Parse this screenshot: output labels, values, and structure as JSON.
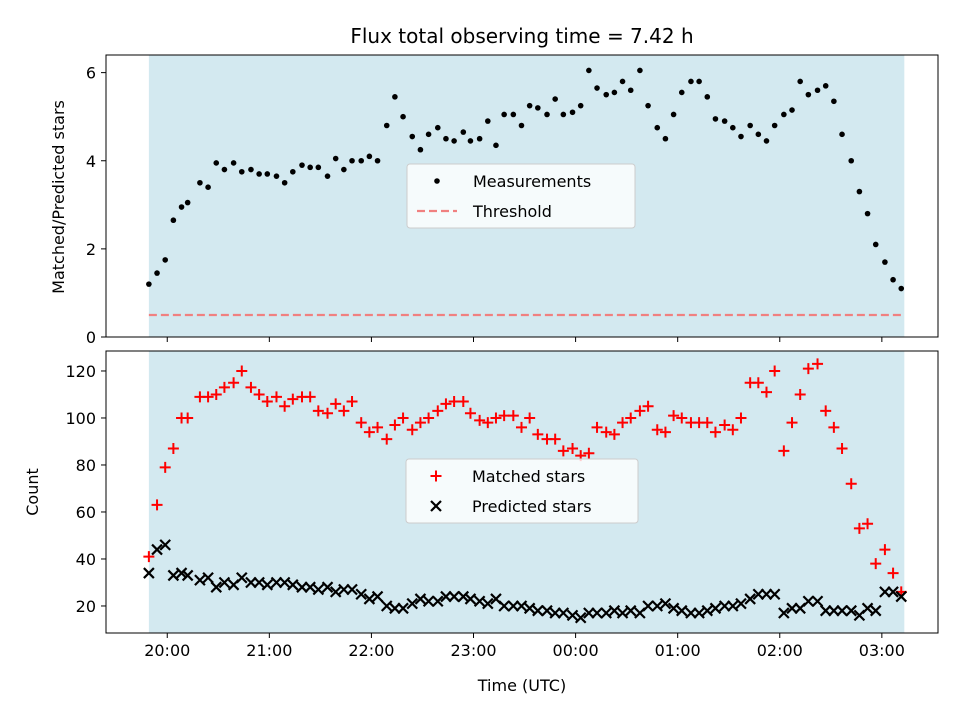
{
  "chart_data": [
    {
      "type": "scatter",
      "title": "Flux total observing time = 7.42 h",
      "xlabel": "",
      "ylabel": "Matched/Predicted stars",
      "ylim": [
        0,
        6.4
      ],
      "yticks": [
        0,
        2,
        4,
        6
      ],
      "shaded_region": {
        "x_start": 19.82,
        "x_end": 27.22,
        "color": "#d3e9f0"
      },
      "legend_position": "center",
      "series": [
        {
          "name": "Measurements",
          "marker": "dot",
          "color": "#000000",
          "x": [
            19.82,
            19.9,
            19.98,
            20.06,
            20.14,
            20.2,
            20.32,
            20.4,
            20.48,
            20.56,
            20.65,
            20.73,
            20.82,
            20.9,
            20.98,
            21.07,
            21.15,
            21.23,
            21.32,
            21.4,
            21.48,
            21.57,
            21.65,
            21.73,
            21.81,
            21.9,
            21.98,
            22.06,
            22.15,
            22.23,
            22.31,
            22.4,
            22.48,
            22.56,
            22.65,
            22.73,
            22.81,
            22.9,
            22.97,
            23.06,
            23.14,
            23.22,
            23.3,
            23.39,
            23.47,
            23.55,
            23.63,
            23.72,
            23.8,
            23.88,
            23.97,
            24.05,
            24.13,
            24.21,
            24.3,
            24.38,
            24.46,
            24.54,
            24.63,
            24.71,
            24.8,
            24.88,
            24.96,
            25.04,
            25.13,
            25.21,
            25.29,
            25.37,
            25.46,
            25.54,
            25.62,
            25.71,
            25.79,
            25.87,
            25.95,
            26.04,
            26.12,
            26.2,
            26.28,
            26.37,
            26.45,
            26.53,
            26.61,
            26.7,
            26.78,
            26.86,
            26.94,
            27.03,
            27.11,
            27.19
          ],
          "y": [
            1.2,
            1.45,
            1.75,
            2.65,
            2.95,
            3.05,
            3.5,
            3.4,
            3.95,
            3.8,
            3.95,
            3.75,
            3.8,
            3.7,
            3.7,
            3.65,
            3.5,
            3.75,
            3.9,
            3.85,
            3.85,
            3.65,
            4.05,
            3.8,
            4.0,
            4.0,
            4.1,
            4.0,
            4.8,
            5.45,
            5.0,
            4.55,
            4.25,
            4.6,
            4.75,
            4.5,
            4.45,
            4.65,
            4.45,
            4.5,
            4.9,
            4.35,
            5.05,
            5.05,
            4.8,
            5.25,
            5.2,
            5.05,
            5.4,
            5.05,
            5.1,
            5.25,
            6.05,
            5.65,
            5.5,
            5.55,
            5.8,
            5.6,
            6.05,
            5.25,
            4.75,
            4.5,
            5.05,
            5.55,
            5.8,
            5.8,
            5.45,
            4.95,
            4.9,
            4.75,
            4.55,
            4.8,
            4.6,
            4.45,
            4.8,
            5.05,
            5.15,
            5.8,
            5.5,
            5.6,
            5.7,
            5.35,
            4.6,
            4.0,
            3.3,
            2.8,
            2.1,
            1.7,
            1.3,
            1.1
          ]
        },
        {
          "name": "Threshold",
          "marker": "dashed-line",
          "color": "#f08080",
          "x": [
            19.82,
            27.22
          ],
          "y": [
            0.5,
            0.5
          ]
        }
      ]
    },
    {
      "type": "scatter",
      "title": "",
      "xlabel": "Time (UTC)",
      "ylabel": "Count",
      "ylim": [
        8.5,
        128.5
      ],
      "yticks": [
        20,
        40,
        60,
        80,
        100,
        120
      ],
      "xlim": [
        19.4,
        27.55
      ],
      "xticks": [
        20,
        21,
        22,
        23,
        24,
        25,
        26,
        27
      ],
      "xticklabels": [
        "20:00",
        "21:00",
        "22:00",
        "23:00",
        "00:00",
        "01:00",
        "02:00",
        "03:00"
      ],
      "shaded_region": {
        "x_start": 19.82,
        "x_end": 27.22,
        "color": "#d3e9f0"
      },
      "legend_position": "center",
      "series": [
        {
          "name": "Matched stars",
          "marker": "plus",
          "color": "#ff0000",
          "x": [
            19.82,
            19.9,
            19.98,
            20.06,
            20.14,
            20.2,
            20.32,
            20.4,
            20.48,
            20.56,
            20.65,
            20.73,
            20.82,
            20.9,
            20.98,
            21.07,
            21.15,
            21.23,
            21.32,
            21.4,
            21.48,
            21.57,
            21.65,
            21.73,
            21.81,
            21.9,
            21.98,
            22.06,
            22.15,
            22.23,
            22.31,
            22.4,
            22.48,
            22.56,
            22.65,
            22.73,
            22.81,
            22.9,
            22.97,
            23.06,
            23.14,
            23.22,
            23.3,
            23.39,
            23.47,
            23.55,
            23.63,
            23.72,
            23.8,
            23.88,
            23.97,
            24.05,
            24.13,
            24.21,
            24.3,
            24.38,
            24.46,
            24.54,
            24.63,
            24.71,
            24.8,
            24.88,
            24.96,
            25.04,
            25.13,
            25.21,
            25.29,
            25.37,
            25.46,
            25.54,
            25.62,
            25.71,
            25.79,
            25.87,
            25.95,
            26.04,
            26.12,
            26.2,
            26.28,
            26.37,
            26.45,
            26.53,
            26.61,
            26.7,
            26.78,
            26.86,
            26.94,
            27.03,
            27.11,
            27.19
          ],
          "y": [
            41,
            63,
            79,
            87,
            100,
            100,
            109,
            109,
            110,
            113,
            115,
            120,
            113,
            110,
            107,
            109,
            105,
            108,
            109,
            109,
            103,
            102,
            106,
            103,
            107,
            98,
            94,
            96,
            91,
            97,
            100,
            95,
            98,
            100,
            103,
            106,
            107,
            107,
            102,
            99,
            98,
            100,
            101,
            101,
            96,
            100,
            93,
            91,
            91,
            86,
            87,
            84,
            85,
            96,
            94,
            93,
            98,
            100,
            103,
            105,
            95,
            94,
            101,
            100,
            98,
            98,
            98,
            94,
            97,
            95,
            100,
            115,
            115,
            111,
            120,
            86,
            98,
            110,
            121,
            123,
            103,
            96,
            87,
            72,
            53,
            55,
            38,
            44,
            34,
            26
          ]
        },
        {
          "name": "Predicted stars",
          "marker": "x",
          "color": "#000000",
          "x": [
            19.82,
            19.9,
            19.98,
            20.06,
            20.14,
            20.2,
            20.32,
            20.4,
            20.48,
            20.56,
            20.65,
            20.73,
            20.82,
            20.9,
            20.98,
            21.07,
            21.15,
            21.23,
            21.32,
            21.4,
            21.48,
            21.57,
            21.65,
            21.73,
            21.81,
            21.9,
            21.98,
            22.06,
            22.15,
            22.23,
            22.31,
            22.4,
            22.48,
            22.56,
            22.65,
            22.73,
            22.81,
            22.9,
            22.97,
            23.06,
            23.14,
            23.22,
            23.3,
            23.39,
            23.47,
            23.55,
            23.63,
            23.72,
            23.8,
            23.88,
            23.97,
            24.05,
            24.13,
            24.21,
            24.3,
            24.38,
            24.46,
            24.54,
            24.63,
            24.71,
            24.8,
            24.88,
            24.96,
            25.04,
            25.13,
            25.21,
            25.29,
            25.37,
            25.46,
            25.54,
            25.62,
            25.71,
            25.79,
            25.87,
            25.95,
            26.04,
            26.12,
            26.2,
            26.28,
            26.37,
            26.45,
            26.53,
            26.61,
            26.7,
            26.78,
            26.86,
            26.94,
            27.03,
            27.11,
            27.19
          ],
          "y": [
            34,
            44,
            46,
            33,
            34,
            33,
            31,
            32,
            28,
            30,
            29,
            32,
            30,
            30,
            29,
            30,
            30,
            29,
            28,
            28,
            27,
            28,
            26,
            27,
            27,
            25,
            23,
            24,
            20,
            19,
            19,
            21,
            23,
            22,
            22,
            24,
            24,
            24,
            23,
            22,
            21,
            23,
            20,
            20,
            20,
            19,
            18,
            18,
            17,
            17,
            16,
            15,
            17,
            17,
            17,
            18,
            17,
            18,
            17,
            20,
            20,
            21,
            19,
            18,
            17,
            17,
            18,
            19,
            20,
            20,
            21,
            23,
            25,
            25,
            25,
            17,
            19,
            19,
            22,
            22,
            18,
            18,
            18,
            18,
            16,
            19,
            18,
            26,
            26,
            24
          ]
        }
      ]
    }
  ]
}
